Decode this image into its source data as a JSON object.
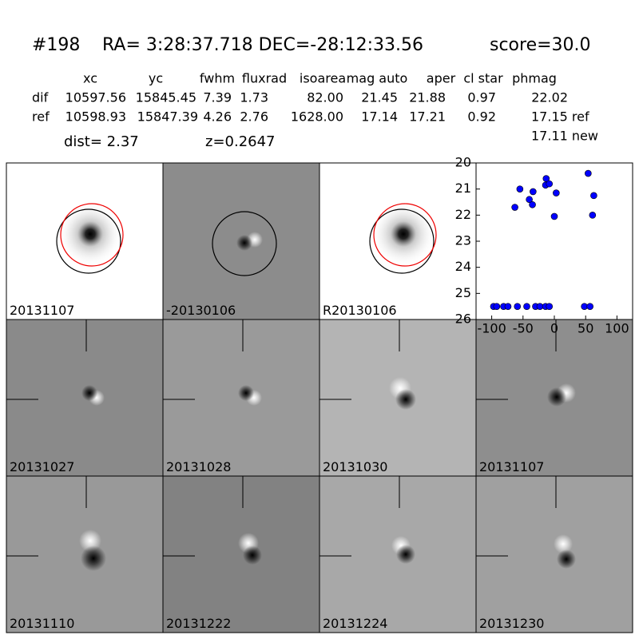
{
  "header": {
    "id": "#198",
    "coords": "RA= 3:28:37.718 DEC=-28:12:33.56",
    "score": "score=30.0"
  },
  "table": {
    "columns": [
      "xc",
      "yc",
      "fwhm",
      "fluxrad",
      "isoarea",
      "mag auto",
      "aper",
      "cl star",
      "phmag"
    ],
    "rows": [
      [
        "dif",
        "10597.56",
        "15845.45",
        "7.39",
        "1.73",
        "82.00",
        "21.45",
        "21.88",
        "0.97",
        "22.02"
      ],
      [
        "ref",
        "10598.93",
        "15847.39",
        "4.26",
        "2.76",
        "1628.00",
        "17.14",
        "17.21",
        "0.92",
        "17.15 ref"
      ]
    ],
    "extra": "17.11 new",
    "dist": "dist=  2.37",
    "z": "z=0.2647"
  },
  "panels": [
    {
      "label": "20131107"
    },
    {
      "label": "-20130106"
    },
    {
      "label": "R20130106"
    },
    {
      "label": "20131027"
    },
    {
      "label": "20131028"
    },
    {
      "label": "20131030"
    },
    {
      "label": "20131107",
      "color": "#ff0000"
    },
    {
      "label": "20131110"
    },
    {
      "label": "20131222"
    },
    {
      "label": "20131224"
    },
    {
      "label": "20131230"
    }
  ],
  "chart_data": {
    "type": "scatter",
    "color": "#0000ff",
    "x": [
      -97,
      -92,
      -81,
      -74,
      -59,
      -44,
      -30,
      -23,
      -14,
      -8,
      48,
      57,
      -55,
      -63,
      -40,
      -35,
      -34,
      -13,
      -14,
      -8,
      3,
      0,
      54,
      63,
      61
    ],
    "values": [
      25.5,
      25.5,
      25.5,
      25.5,
      25.5,
      25.5,
      25.5,
      25.5,
      25.5,
      25.5,
      25.5,
      25.5,
      21.0,
      21.7,
      21.4,
      21.6,
      21.1,
      20.6,
      20.85,
      20.8,
      21.15,
      22.05,
      20.4,
      21.25,
      22.0
    ],
    "xlim": [
      -125,
      125
    ],
    "xticks": [
      -100,
      -50,
      0,
      50,
      100
    ],
    "ylim": [
      20,
      26
    ],
    "yticks": [
      20,
      21,
      22,
      23,
      24,
      25,
      26
    ],
    "y_inverted": true
  }
}
